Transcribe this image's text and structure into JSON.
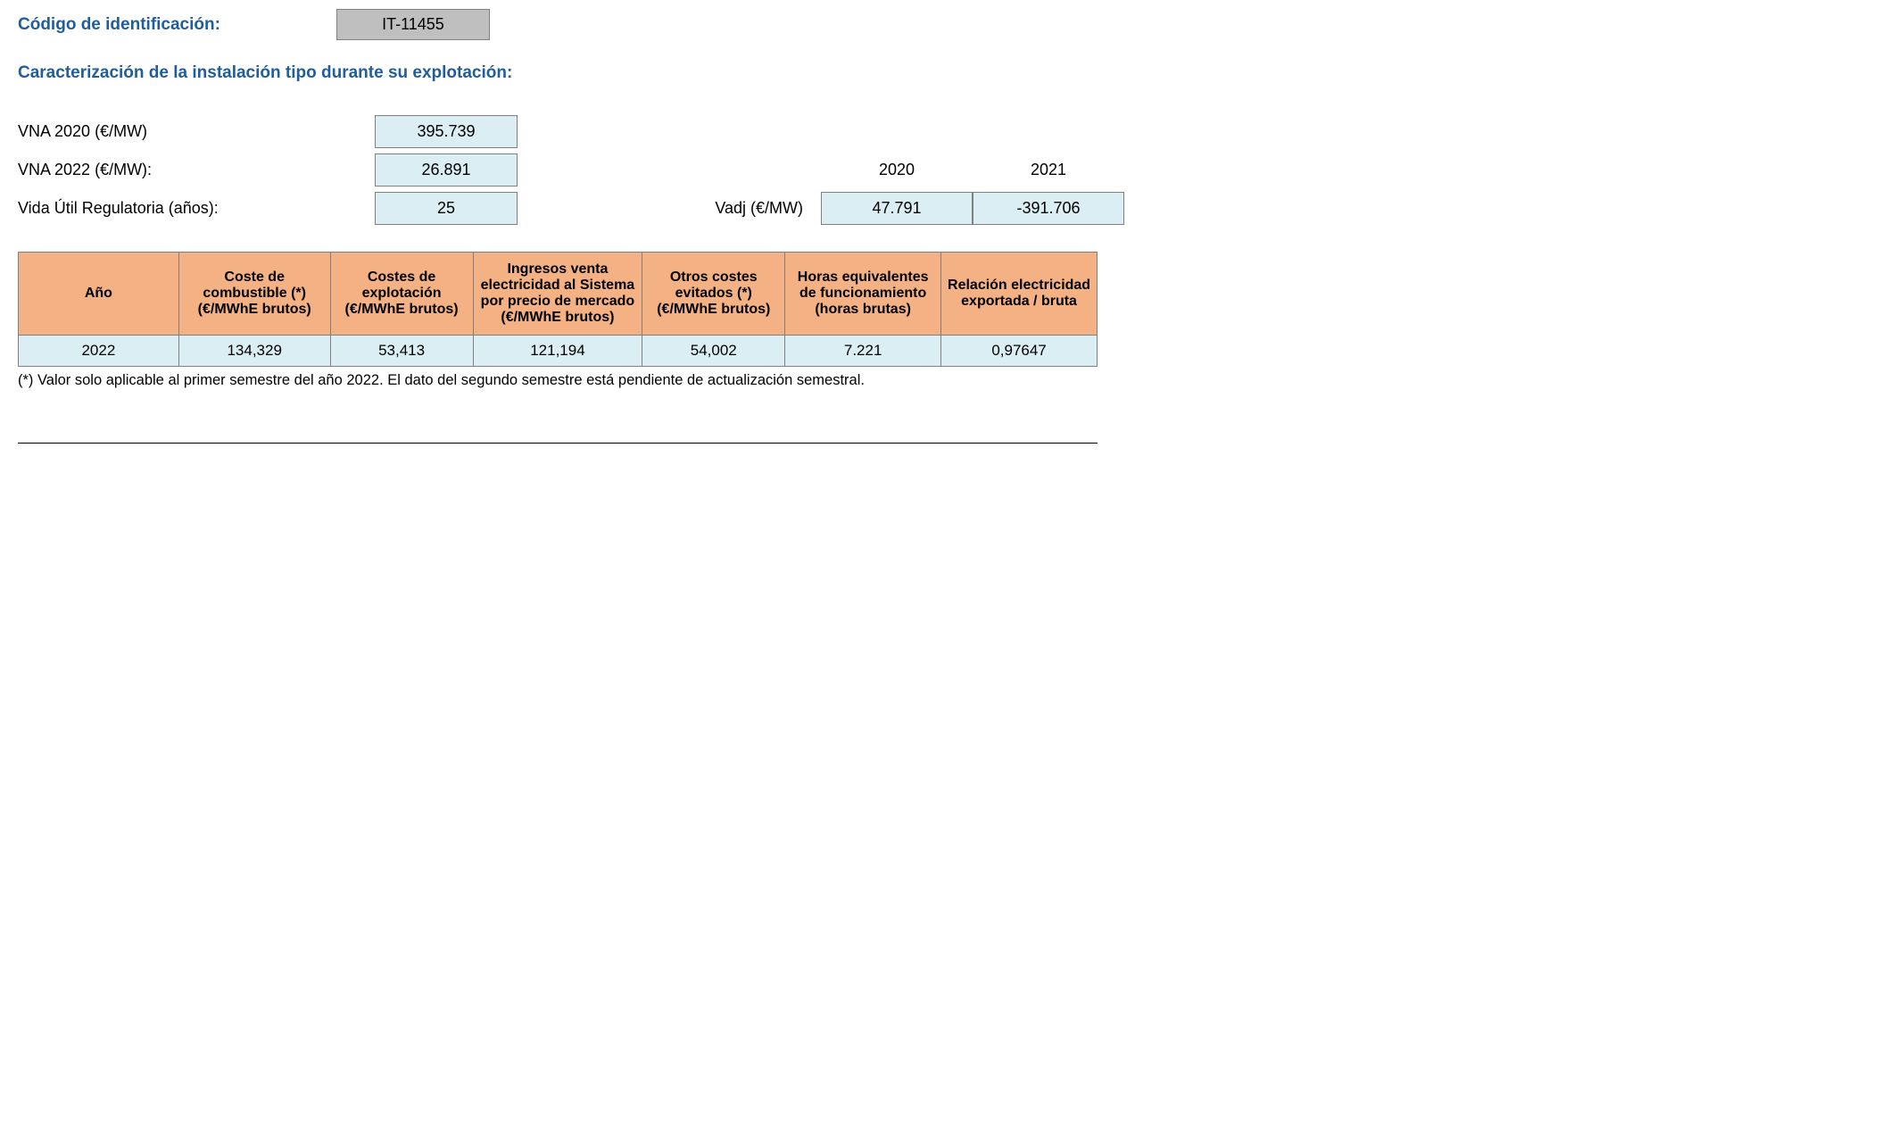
{
  "header": {
    "code_label": "Código de identificación:",
    "code_value": "IT-11455"
  },
  "section_title": "Caracterización de la instalación tipo durante su explotación:",
  "params": {
    "vna2020_label": "VNA 2020 (€/MW)",
    "vna2020_value": "395.739",
    "vna2022_label": "VNA 2022 (€/MW):",
    "vna2022_value": "26.891",
    "vida_label": "Vida Útil Regulatoria (años):",
    "vida_value": "25",
    "vadj_label": "Vadj (€/MW)",
    "vadj_year1_label": "2020",
    "vadj_year2_label": "2021",
    "vadj_year1_value": "47.791",
    "vadj_year2_value": "-391.706"
  },
  "table": {
    "columns": [
      "Año",
      "Coste de combustible (*) (€/MWhE brutos)",
      "Costes de explotación (€/MWhE brutos)",
      "Ingresos venta electricidad al Sistema por precio de mercado (€/MWhE brutos)",
      "Otros costes evitados (*) (€/MWhE brutos)",
      "Horas equivalentes de funcionamiento (horas brutas)",
      "Relación electricidad exportada / bruta"
    ],
    "row": {
      "year": "2022",
      "fuel_cost": "134,329",
      "op_cost": "53,413",
      "income": "121,194",
      "other_avoided": "54,002",
      "eq_hours": "7.221",
      "ratio": "0,97647"
    },
    "col_widths": [
      "180px",
      "170px",
      "160px",
      "190px",
      "160px",
      "175px",
      "175px"
    ],
    "header_bg": "#f4b183",
    "cell_bg": "#dbeef4",
    "border_color": "#808080"
  },
  "footnote": "(*) Valor solo aplicable al primer semestre del año 2022. El dato del segundo semestre está pendiente de actualización semestral."
}
